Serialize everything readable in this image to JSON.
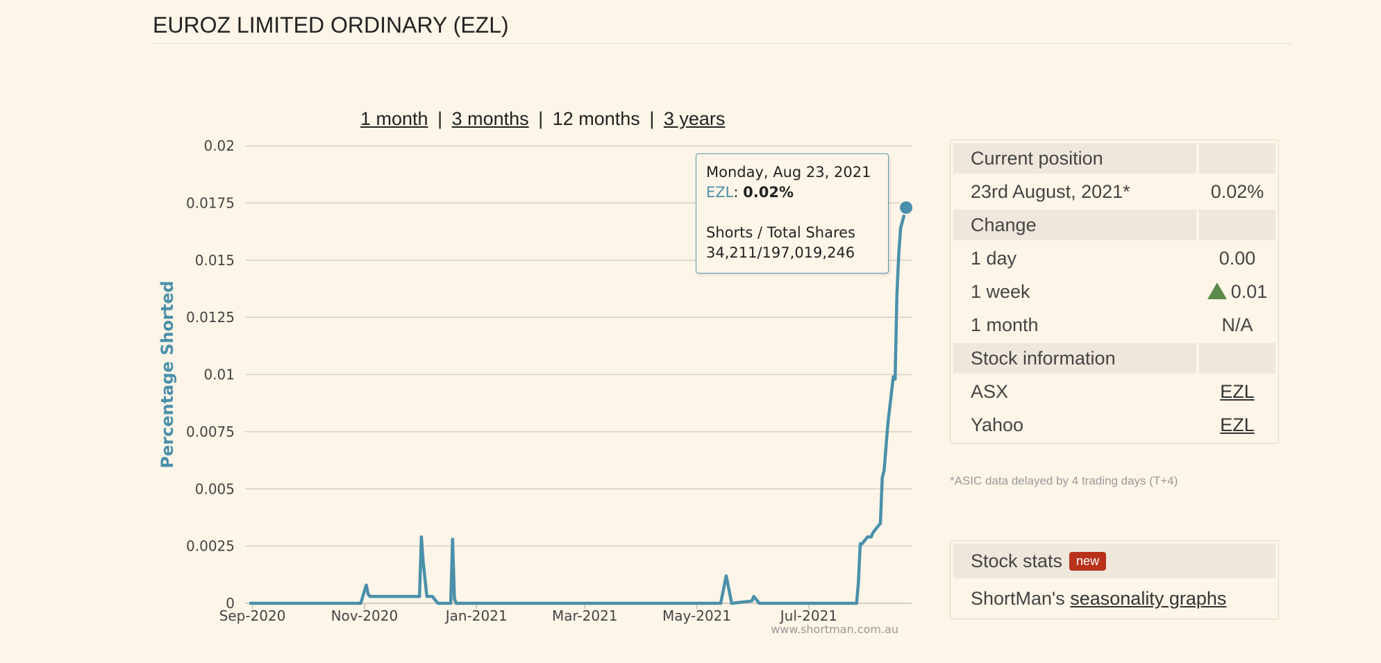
{
  "page": {
    "title": "EUROZ LIMITED ORDINARY (EZL)"
  },
  "ranges": {
    "one_month": "1 month",
    "three_months": "3 months",
    "twelve_months": "12 months",
    "three_years": "3 years",
    "separator": "|"
  },
  "chart_data": {
    "type": "line",
    "title": "",
    "xlabel": "",
    "ylabel": "Percentage Shorted",
    "x_ticks": [
      "Sep-2020",
      "Nov-2020",
      "Jan-2021",
      "Mar-2021",
      "May-2021",
      "Jul-2021"
    ],
    "y_ticks": [
      "0",
      "0.0025",
      "0.005",
      "0.0075",
      "0.01",
      "0.0125",
      "0.015",
      "0.0175",
      "0.02"
    ],
    "ylim": [
      0,
      0.02
    ],
    "xlim": [
      "2020-08-28",
      "2021-08-26"
    ],
    "grid": "horizontal",
    "legend": "none",
    "series": [
      {
        "name": "EZL",
        "color": "#4a90aa",
        "x": [
          "2020-08-31",
          "2020-10-30",
          "2020-11-02",
          "2020-11-03",
          "2020-11-04",
          "2020-11-05",
          "2020-12-01",
          "2020-12-02",
          "2020-12-03",
          "2020-12-05",
          "2020-12-08",
          "2020-12-10",
          "2020-12-11",
          "2020-12-18",
          "2020-12-19",
          "2020-12-20",
          "2020-12-21",
          "2021-05-14",
          "2021-05-17",
          "2021-05-20",
          "2021-05-31",
          "2021-06-01",
          "2021-06-03",
          "2021-06-04",
          "2021-07-27",
          "2021-07-28",
          "2021-07-29",
          "2021-07-30",
          "2021-08-02",
          "2021-08-04",
          "2021-08-05",
          "2021-08-06",
          "2021-08-09",
          "2021-08-10",
          "2021-08-11",
          "2021-08-12",
          "2021-08-13",
          "2021-08-16",
          "2021-08-17",
          "2021-08-18",
          "2021-08-19",
          "2021-08-20",
          "2021-08-23"
        ],
        "values": [
          0,
          0,
          0.0008,
          0.0004,
          0.0003,
          0.0003,
          0.0003,
          0.0029,
          0.0018,
          0.0003,
          0.0003,
          0.0001,
          0,
          0,
          0.0028,
          0.0002,
          0,
          0,
          0.0012,
          0,
          0.0001,
          0.0003,
          0.0001,
          0,
          0,
          0.0009,
          0.0026,
          0.0026,
          0.0029,
          0.0029,
          0.0031,
          0.0032,
          0.0035,
          0.0055,
          0.0058,
          0.0068,
          0.0078,
          0.0099,
          0.0098,
          0.0135,
          0.0153,
          0.0164,
          0.0173
        ]
      }
    ],
    "highlight_point": {
      "x": "2021-08-23",
      "y": 0.0173
    },
    "credits": "www.shortman.com.au"
  },
  "tooltip": {
    "date": "Monday, Aug 23, 2021",
    "series": "EZL",
    "colon": ":",
    "value": "0.02%",
    "shorts_label": "Shorts / Total Shares",
    "shorts_value": "34,211/197,019,246"
  },
  "info": {
    "current_position_header": "Current position",
    "date": "23rd August, 2021*",
    "position_value": "0.02%",
    "change_header": "Change",
    "rows": [
      {
        "label": "1 day",
        "value": "0.00",
        "trend": ""
      },
      {
        "label": "1 week",
        "value": "0.01",
        "trend": "up"
      },
      {
        "label": "1 month",
        "value": "N/A",
        "trend": ""
      }
    ],
    "stock_info_header": "Stock information",
    "asx_label": "ASX",
    "asx_link": "EZL",
    "yahoo_label": "Yahoo",
    "yahoo_link": "EZL",
    "up_color": "#5a8a4a"
  },
  "note": "*ASIC data delayed by 4 trading days (T+4)",
  "stats": {
    "header": "Stock stats",
    "badge": "new",
    "text_prefix": "ShortMan's",
    "link": "seasonality graphs"
  }
}
